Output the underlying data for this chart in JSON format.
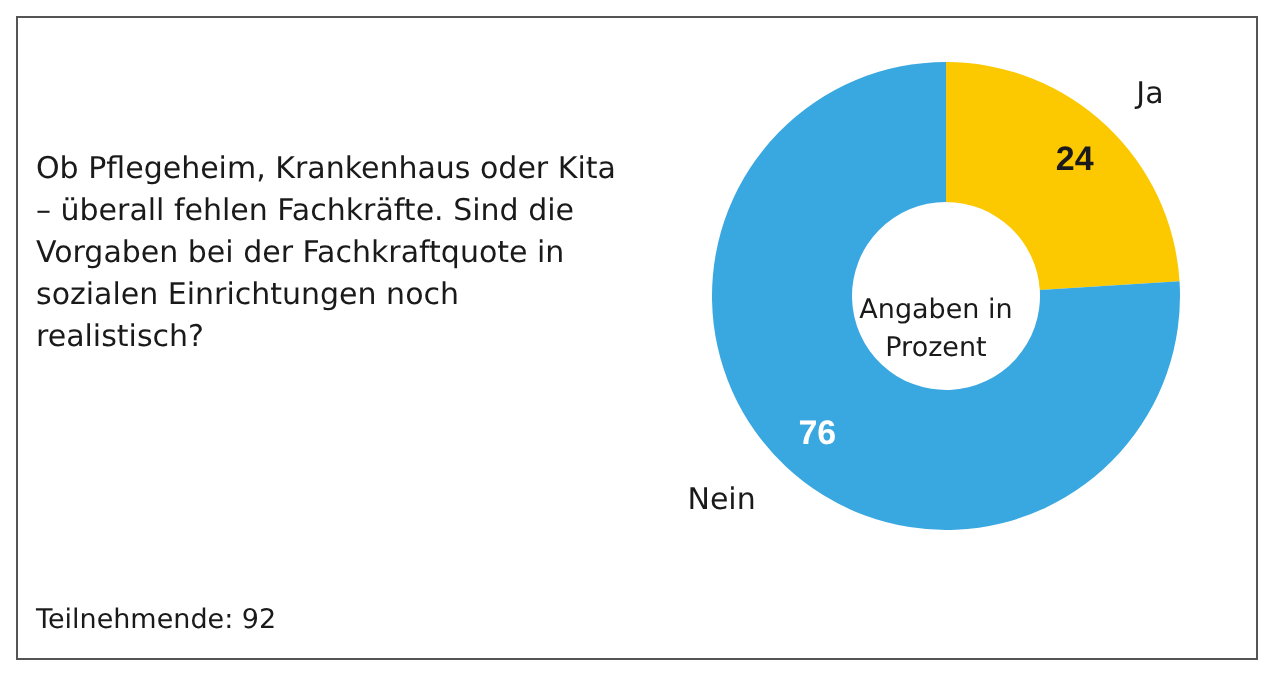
{
  "chart_data": {
    "type": "donut",
    "title": "Ob Pflegeheim, Krankenhaus oder Kita – überall fehlen Fachkräfte. Sind die Vorgaben bei der Fachkraftquote in sozialen Einrichtungen noch realistisch?",
    "categories": [
      "Ja",
      "Nein"
    ],
    "values": [
      24,
      76
    ],
    "colors": [
      "#fcc800",
      "#3aa8e0"
    ],
    "data_labels": true,
    "annotations": [
      "Angaben in Prozent",
      "Teilnehmende: 92"
    ]
  }
}
